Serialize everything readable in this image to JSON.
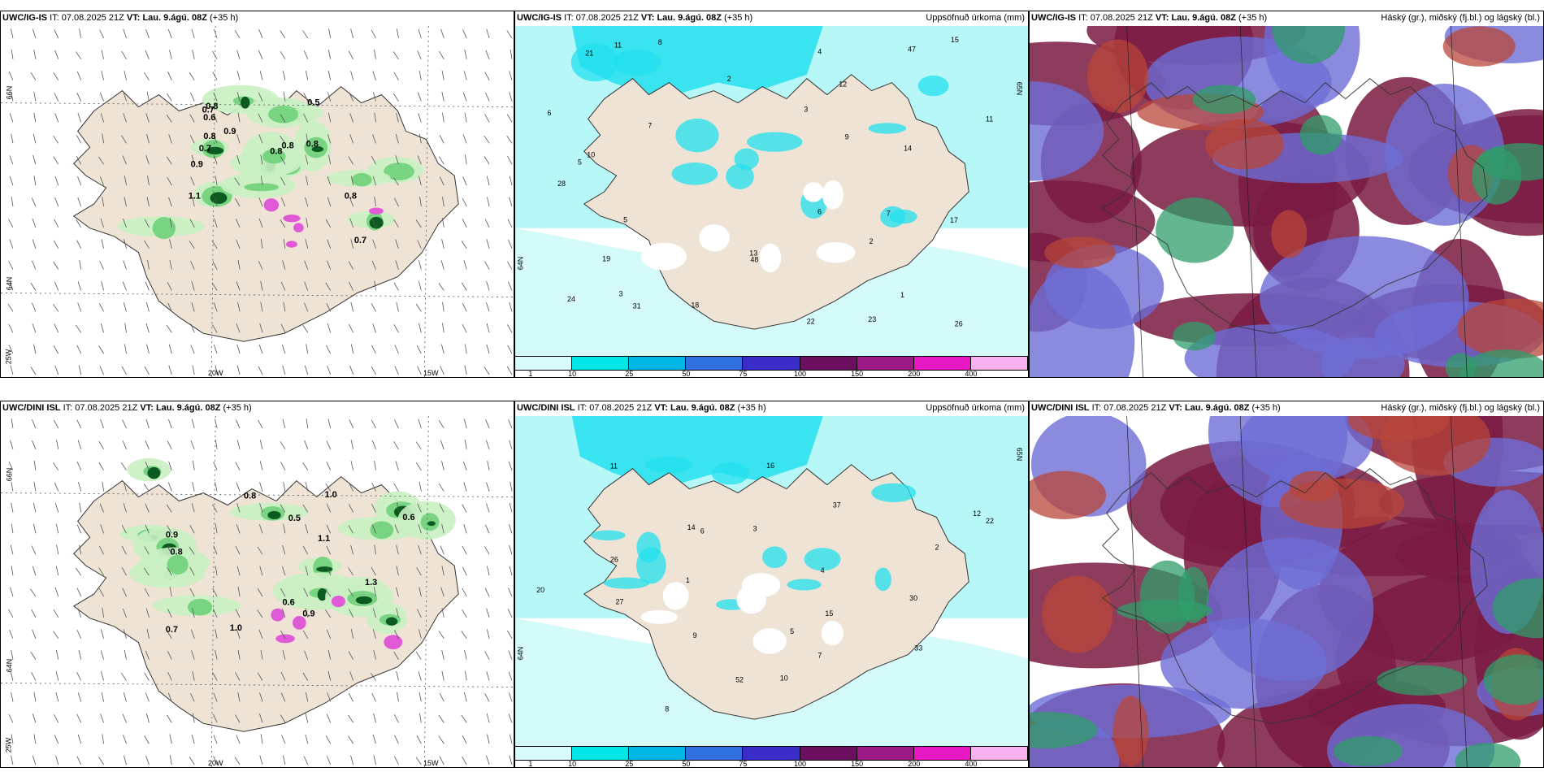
{
  "top": {
    "left": {
      "model": "UWC/IG-IS",
      "it_label": "IT:",
      "it_value": "07.08.2025 21Z",
      "vt_label": "VT:",
      "vt_value": "Lau. 9.ágú. 08Z",
      "lead": "(+35 h)",
      "lat_labels": [
        "66N",
        "64N"
      ],
      "lon_labels": [
        "25W",
        "20W",
        "15W"
      ],
      "values": [
        "0.8",
        "0.5",
        "0.7",
        "0.9",
        "0.8",
        "0.7",
        "0.9",
        "0.6",
        "0.8",
        "0.8",
        "1.1",
        "0.8",
        "0.7",
        "0.8"
      ]
    },
    "middle": {
      "model": "UWC/IG-IS",
      "it_label": "IT:",
      "it_value": "07.08.2025 21Z",
      "vt_label": "VT:",
      "vt_value": "Lau. 9.ágú. 08Z",
      "lead": "(+35 h)",
      "right_title": "Uppsöfnuð úrkoma (mm)",
      "lat_labels": [
        "65N",
        "64N"
      ],
      "values": [
        "10",
        "11",
        "5",
        "18",
        "28",
        "26",
        "17",
        "23",
        "48",
        "24",
        "13",
        "7",
        "8",
        "12",
        "22",
        "14",
        "6",
        "47",
        "11",
        "9",
        "31",
        "21",
        "19",
        "3",
        "4",
        "2",
        "6",
        "7",
        "1",
        "5",
        "15",
        "3",
        "2"
      ]
    },
    "right": {
      "model": "UWC/IG-IS",
      "it_label": "IT:",
      "it_value": "07.08.2025 21Z",
      "vt_label": "VT:",
      "vt_value": "Lau. 9.ágú. 08Z",
      "lead": "(+35 h)",
      "right_title": "Háský (gr.), miðský (fj.bl.) og lágský (bl.)"
    }
  },
  "bottom": {
    "left": {
      "model": "UWC/DINI ISL",
      "it_label": "IT:",
      "it_value": "07.08.2025 21Z",
      "vt_label": "VT:",
      "vt_value": "Lau. 9.ágú. 08Z",
      "lead": "(+35 h)",
      "lat_labels": [
        "66N",
        "64N"
      ],
      "lon_labels": [
        "25W",
        "20W",
        "15W"
      ],
      "values": [
        "0.6",
        "0.8",
        "0.7",
        "1.0",
        "0.9",
        "0.5",
        "1.0",
        "0.8",
        "0.9",
        "0.6",
        "1.1",
        "1.3"
      ]
    },
    "middle": {
      "model": "UWC/DINI ISL",
      "it_label": "IT:",
      "it_value": "07.08.2025 21Z",
      "vt_label": "VT:",
      "vt_value": "Lau. 9.ágú. 08Z",
      "lead": "(+35 h)",
      "right_title": "Uppsöfnuð úrkoma (mm)",
      "lat_labels": [
        "65N",
        "64N"
      ],
      "values": [
        "12",
        "4",
        "37",
        "30",
        "22",
        "16",
        "52",
        "27",
        "20",
        "26",
        "15",
        "10",
        "9",
        "7",
        "6",
        "8",
        "3",
        "2",
        "1",
        "5",
        "14",
        "33",
        "11"
      ]
    },
    "right": {
      "model": "UWC/DINI ISL",
      "it_label": "IT:",
      "it_value": "07.08.2025 21Z",
      "vt_label": "VT:",
      "vt_value": "Lau. 9.ágú. 08Z",
      "lead": "(+35 h)",
      "right_title": "Háský (gr.), miðský (fj.bl.) og lágský (bl.)"
    }
  },
  "legend": {
    "ticks": [
      "1",
      "10",
      "25",
      "50",
      "75",
      "100",
      "150",
      "200",
      "400"
    ],
    "colors": [
      "#d8fbfb",
      "#00e5e5",
      "#00b7e6",
      "#2f6fe0",
      "#3a2cc9",
      "#6b0f5e",
      "#9c1a86",
      "#e817c4",
      "#f7b0ee"
    ]
  },
  "colors": {
    "land": "#efe3d5",
    "sea_precip": "#b8f7f7",
    "cyan": "#22e0ee",
    "green_light": "#c9f0c2",
    "green_mid": "#6fd07a",
    "green_dark": "#0b5a1f",
    "magenta": "#e05ad8",
    "cloud_high": "#2f9e6a",
    "cloud_mid": "#6d6dd6",
    "cloud_low": "#7a1a42",
    "cloud_red": "#b8463a"
  }
}
